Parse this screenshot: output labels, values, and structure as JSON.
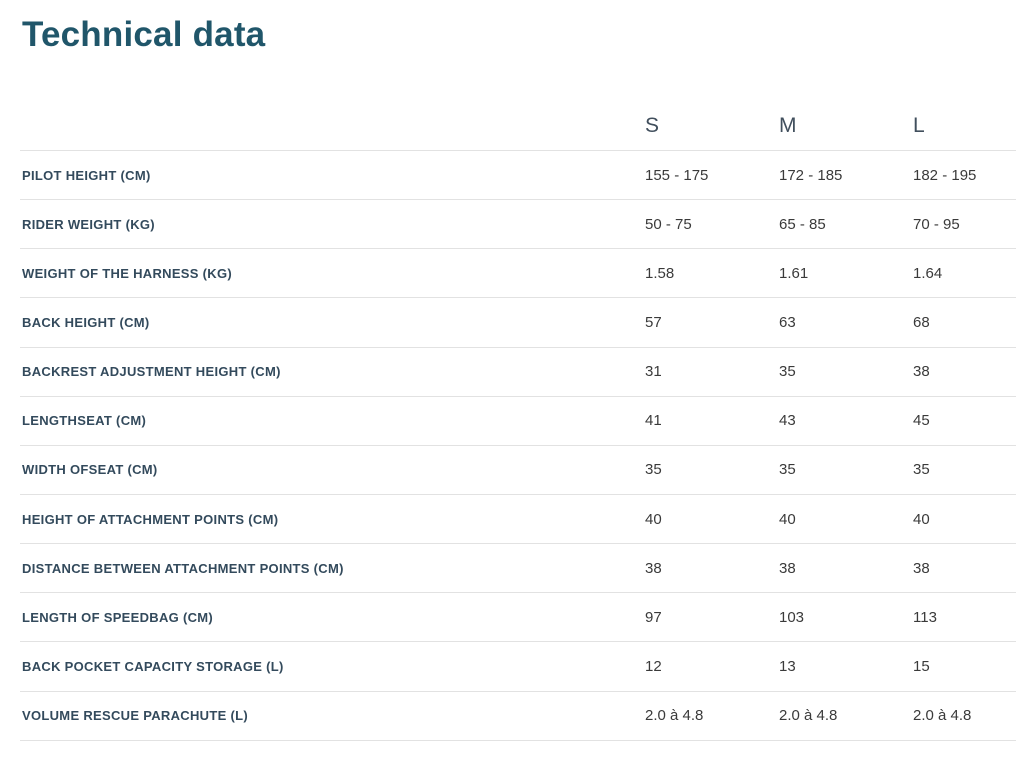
{
  "page": {
    "title": "Technical data"
  },
  "colors": {
    "title": "#20566a",
    "row_label": "#334a5c",
    "size_header": "#414f5d",
    "value": "#3a3a3a",
    "divider": "#e2e2e2",
    "background": "#ffffff"
  },
  "table": {
    "size_headers": [
      "S",
      "M",
      "L"
    ],
    "rows": [
      {
        "label": "PILOT HEIGHT (CM)",
        "values": [
          "155 - 175",
          "172 - 185",
          "182 - 195"
        ]
      },
      {
        "label": "RIDER WEIGHT (KG)",
        "values": [
          "50 - 75",
          "65 - 85",
          "70 - 95"
        ]
      },
      {
        "label": "WEIGHT OF THE HARNESS (KG)",
        "values": [
          "1.58",
          "1.61",
          "1.64"
        ]
      },
      {
        "label": "BACK HEIGHT (CM)",
        "values": [
          "57",
          "63",
          "68"
        ]
      },
      {
        "label": "BACKREST ADJUSTMENT HEIGHT (CM)",
        "values": [
          "31",
          "35",
          "38"
        ]
      },
      {
        "label": "LENGTHSEAT (CM)",
        "values": [
          "41",
          "43",
          "45"
        ]
      },
      {
        "label": "WIDTH OFSEAT (CM)",
        "values": [
          "35",
          "35",
          "35"
        ]
      },
      {
        "label": "HEIGHT OF ATTACHMENT POINTS (CM)",
        "values": [
          "40",
          "40",
          "40"
        ]
      },
      {
        "label": "DISTANCE BETWEEN ATTACHMENT POINTS (CM)",
        "values": [
          "38",
          "38",
          "38"
        ]
      },
      {
        "label": "LENGTH OF SPEEDBAG (CM)",
        "values": [
          "97",
          "103",
          "113"
        ]
      },
      {
        "label": "BACK POCKET CAPACITY STORAGE (L)",
        "values": [
          "12",
          "13",
          "15"
        ]
      },
      {
        "label": "VOLUME RESCUE PARACHUTE (L)",
        "values": [
          "2.0 à 4.8",
          "2.0 à 4.8",
          "2.0 à 4.8"
        ]
      }
    ]
  }
}
